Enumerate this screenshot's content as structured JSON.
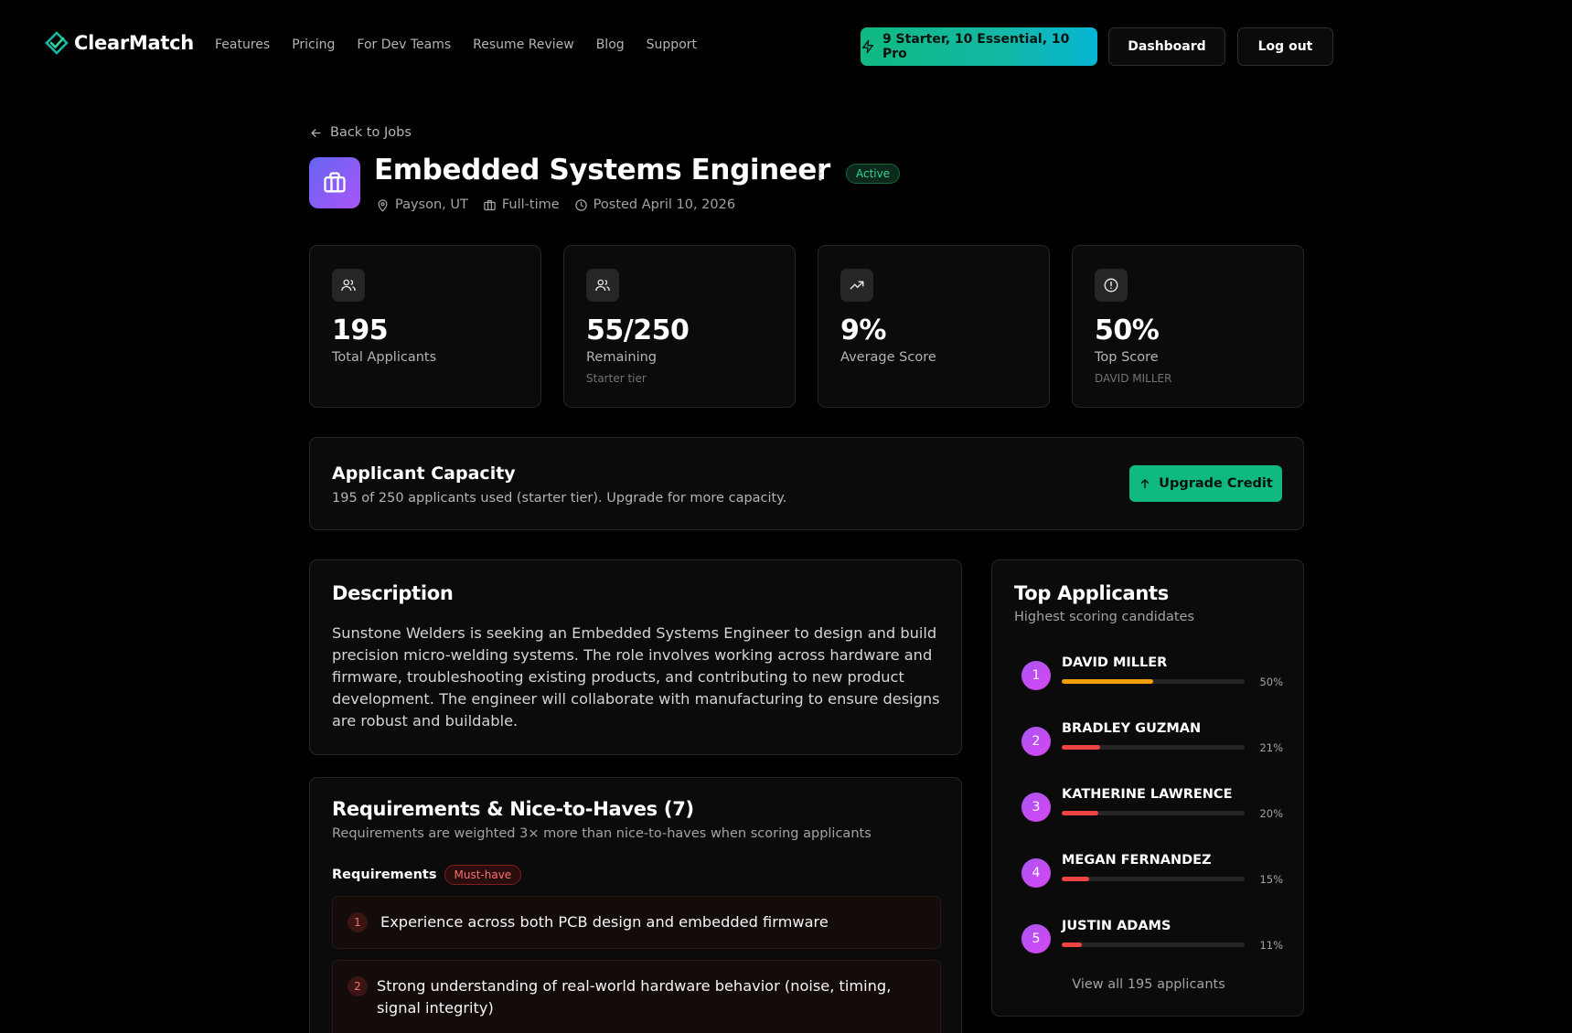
{
  "header": {
    "logo_text": "ClearMatch",
    "nav": [
      "Features",
      "Pricing",
      "For Dev Teams",
      "Resume Review",
      "Blog",
      "Support"
    ],
    "credits_label": "9 Starter, 10 Essential, 10 Pro",
    "dashboard_label": "Dashboard",
    "logout_label": "Log out"
  },
  "job": {
    "back_label": "Back to Jobs",
    "title": "Embedded Systems Engineer",
    "status": "Active",
    "location": "Payson, UT",
    "type": "Full-time",
    "posted": "Posted April 10, 2026"
  },
  "stats": [
    {
      "value": "195",
      "label": "Total Applicants",
      "sub": "",
      "icon": "users-icon"
    },
    {
      "value": "55/250",
      "label": "Remaining",
      "sub": "Starter tier",
      "icon": "users-icon"
    },
    {
      "value": "9%",
      "label": "Average Score",
      "sub": "",
      "icon": "trending-up-icon"
    },
    {
      "value": "50%",
      "label": "Top Score",
      "sub": "DAVID MILLER",
      "icon": "alert-circle-icon"
    }
  ],
  "capacity": {
    "title": "Applicant Capacity",
    "description": "195 of 250 applicants used (starter tier). Upgrade for more capacity.",
    "upgrade_label": "Upgrade Credit"
  },
  "description": {
    "title": "Description",
    "body": "Sunstone Welders is seeking an Embedded Systems Engineer to design and build precision micro-welding systems. The role involves working across hardware and firmware, troubleshooting existing products, and contributing to new product development. The engineer will collaborate with manufacturing to ensure designs are robust and buildable."
  },
  "requirements": {
    "title": "Requirements & Nice-to-Haves (7)",
    "subtitle": "Requirements are weighted 3× more than nice-to-haves when scoring applicants",
    "section_label": "Requirements",
    "badge": "Must-have",
    "items": [
      {
        "num": "1",
        "text": "Experience across both PCB design and embedded firmware"
      },
      {
        "num": "2",
        "text": "Strong understanding of real-world hardware behavior (noise, timing, signal integrity)"
      }
    ]
  },
  "top_applicants": {
    "title": "Top Applicants",
    "subtitle": "Highest scoring candidates",
    "list": [
      {
        "rank": "1",
        "name": "DAVID MILLER",
        "score_label": "50%",
        "score": 50,
        "color": "#f59e0b"
      },
      {
        "rank": "2",
        "name": "BRADLEY GUZMAN",
        "score_label": "21%",
        "score": 21,
        "color": "#ef4444"
      },
      {
        "rank": "3",
        "name": "KATHERINE LAWRENCE",
        "score_label": "20%",
        "score": 20,
        "color": "#ef4444"
      },
      {
        "rank": "4",
        "name": "MEGAN FERNANDEZ",
        "score_label": "15%",
        "score": 15,
        "color": "#ef4444"
      },
      {
        "rank": "5",
        "name": "JUSTIN ADAMS",
        "score_label": "11%",
        "score": 11,
        "color": "#ef4444"
      }
    ],
    "view_all_label": "View all 195 applicants"
  }
}
